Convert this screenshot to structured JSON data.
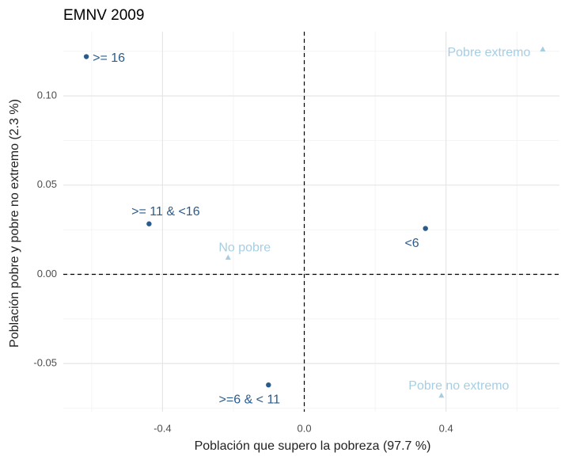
{
  "chart_data": {
    "type": "scatter",
    "title": "EMNV 2009",
    "x_label": "Población que supero la pobreza (97.7 %)",
    "y_label": "Población pobre y pobre no extremo (2.3 %)",
    "xlim": [
      -0.68,
      0.72
    ],
    "ylim": [
      -0.077,
      0.136
    ],
    "xticks": [
      {
        "value": -0.4,
        "label": "-0.4"
      },
      {
        "value": 0,
        "label": "0.0"
      },
      {
        "value": 0.4,
        "label": "0.4"
      }
    ],
    "yticks": [
      {
        "value": -0.05,
        "label": "-0.05"
      },
      {
        "value": 0,
        "label": "0.00"
      },
      {
        "value": 0.05,
        "label": "0.05"
      },
      {
        "value": 0.1,
        "label": "0.10"
      }
    ],
    "x_minor_grid": [
      -0.6,
      -0.2,
      0.2,
      0.6
    ],
    "y_minor_grid": [
      -0.075,
      -0.025,
      0.025,
      0.075,
      0.125
    ],
    "grid": true,
    "series": [
      {
        "color": "#2b5b8c",
        "marker": "circle",
        "labels": [
          ">= 16",
          ">= 11 & <16",
          "<6",
          ">=6 & < 11"
        ],
        "x": [
          -0.615,
          -0.438,
          0.342,
          -0.101
        ],
        "values": [
          0.122,
          0.0283,
          0.0257,
          -0.062
        ]
      },
      {
        "color": "#a6cee3",
        "marker": "triangle",
        "labels": [
          "Pobre extremo",
          "No pobre",
          "Pobre no extremo"
        ],
        "x": [
          0.673,
          -0.215,
          0.387
        ],
        "values": [
          0.126,
          0.0093,
          -0.068
        ]
      }
    ]
  }
}
